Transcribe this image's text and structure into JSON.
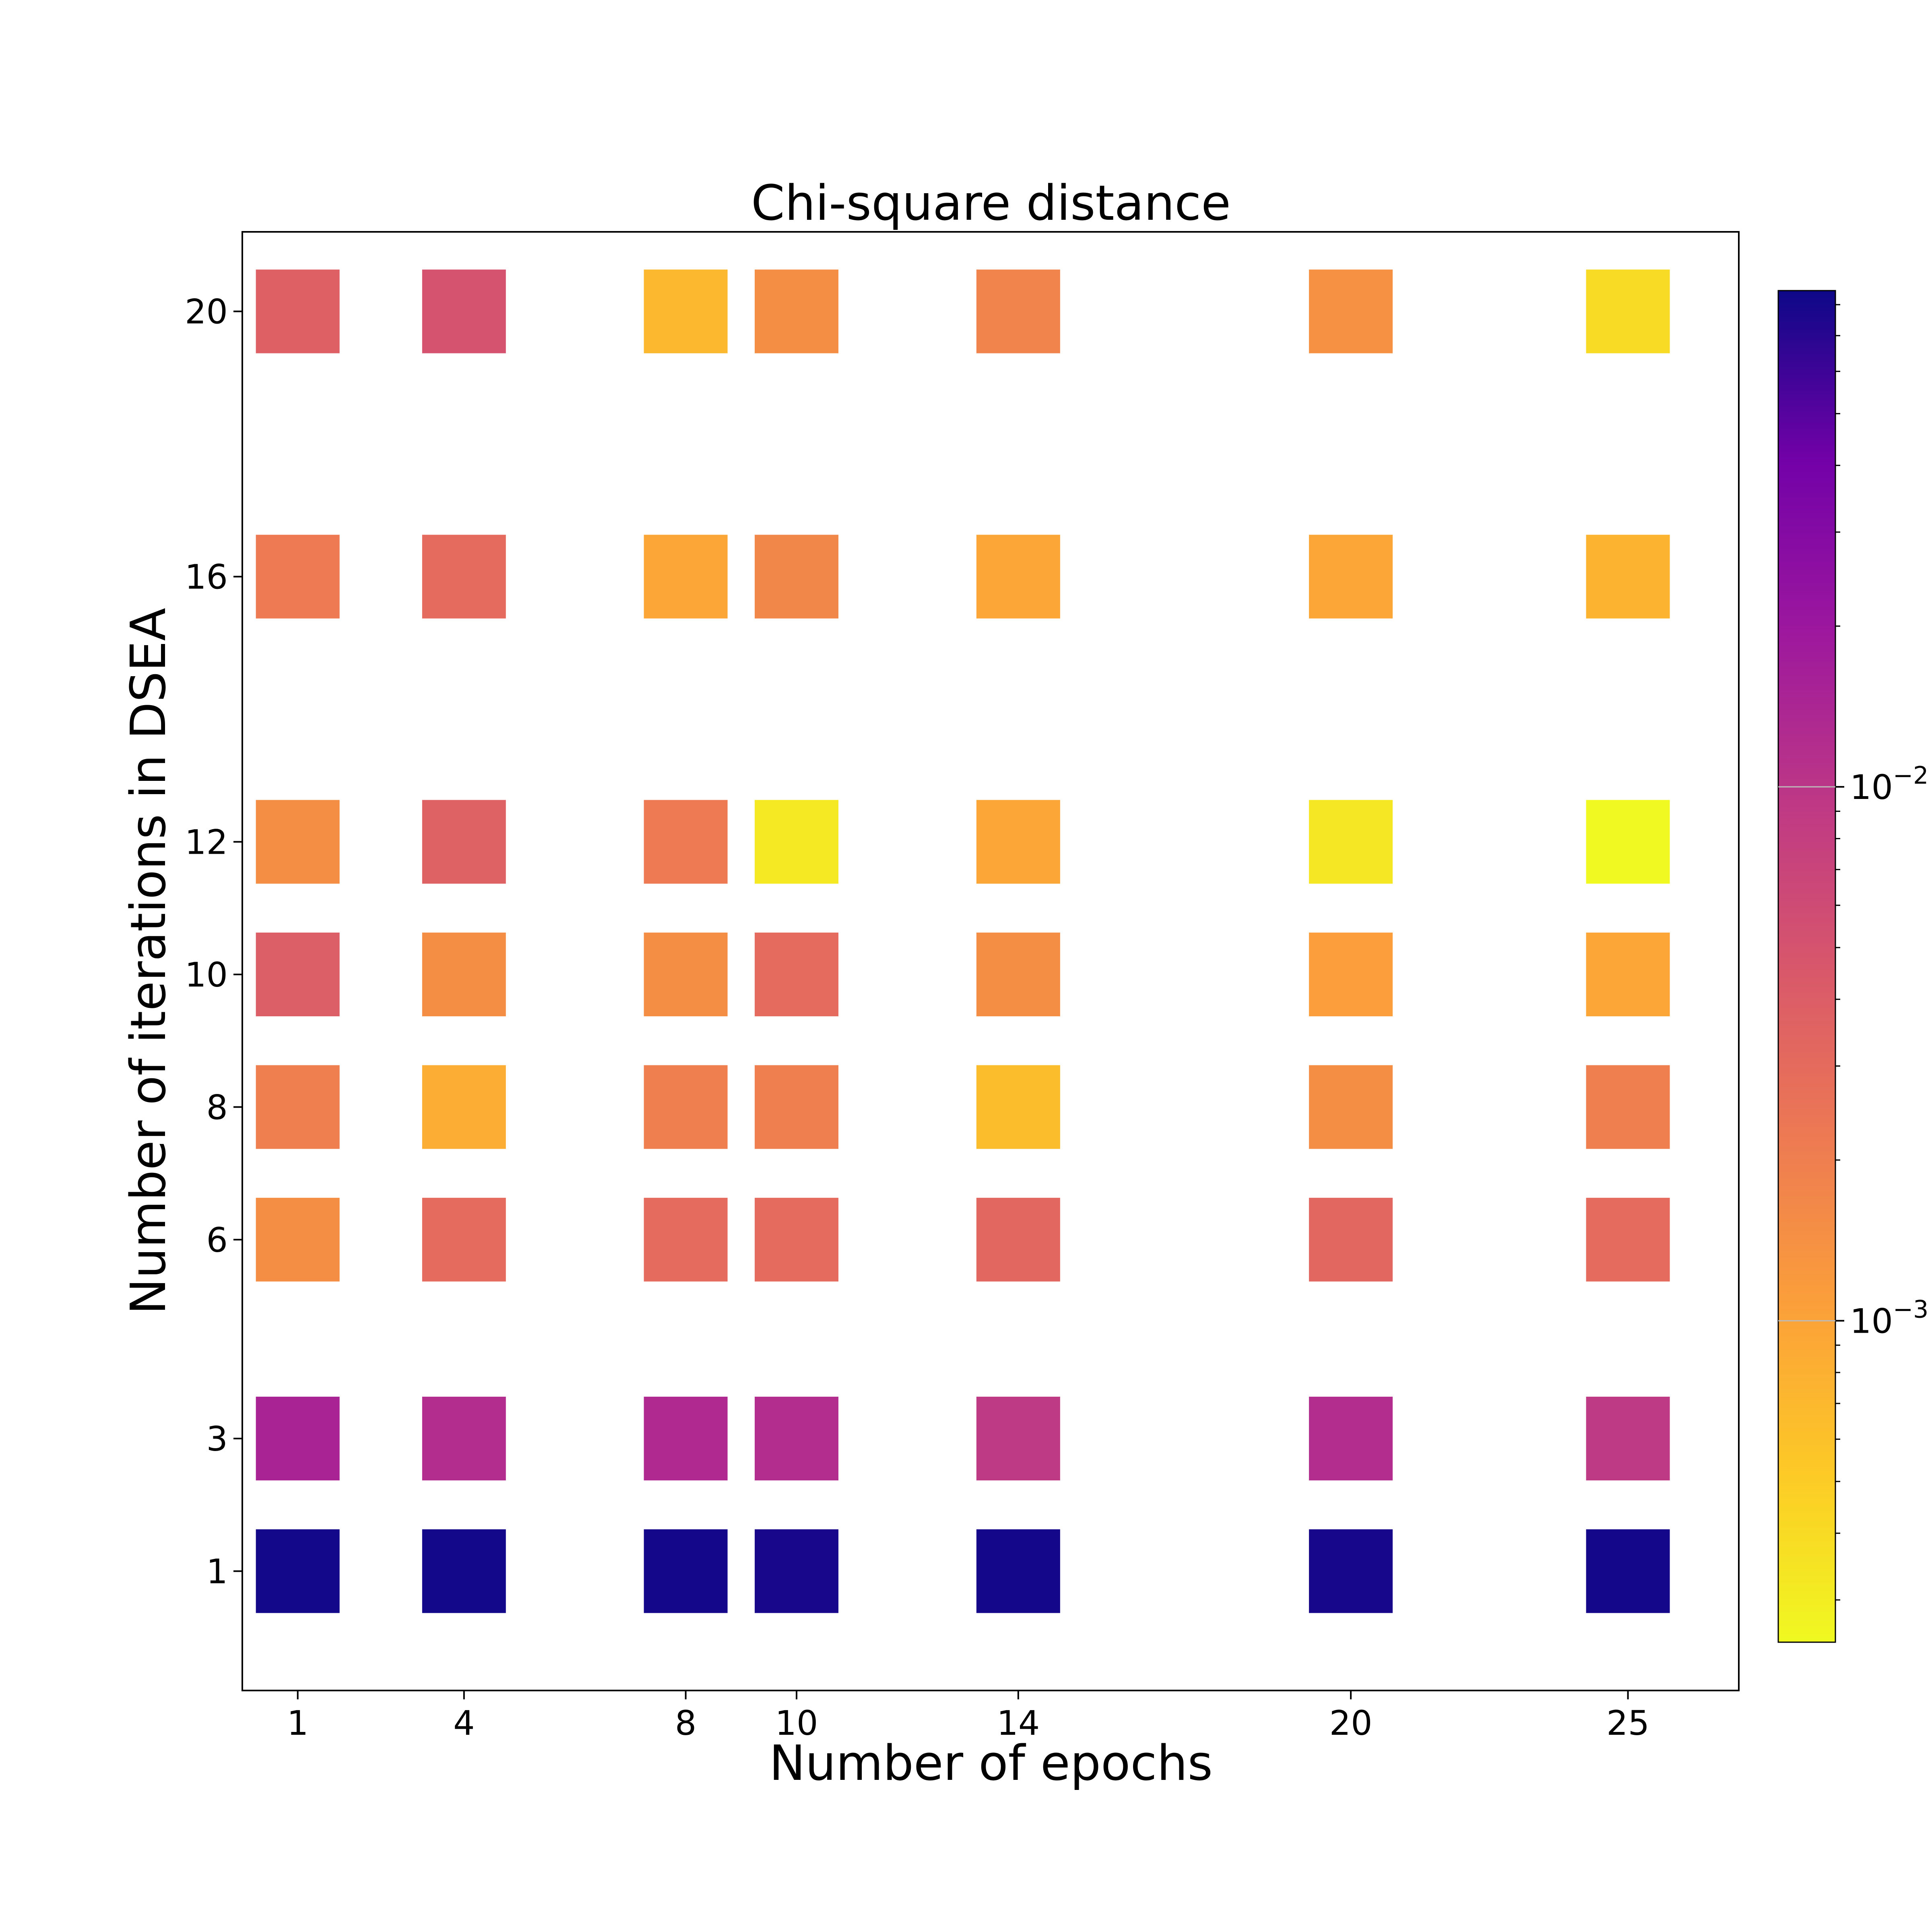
{
  "chart_data": {
    "type": "heatmap",
    "title": "Chi-square distance",
    "xlabel": "Number of epochs",
    "ylabel": "Number of iterations in DSEA",
    "x": [
      1,
      4,
      8,
      10,
      14,
      20,
      25
    ],
    "y": [
      1,
      3,
      6,
      8,
      10,
      12,
      16,
      20
    ],
    "xticks": [
      "1",
      "4",
      "8",
      "10",
      "14",
      "20",
      "25"
    ],
    "yticks": [
      "1",
      "3",
      "6",
      "8",
      "10",
      "12",
      "16",
      "20"
    ],
    "colorscale": "plasma_r",
    "color_scale_type": "log",
    "color_range": [
      0.00025,
      0.085
    ],
    "colorbar_ticks": [
      {
        "value": 0.001,
        "label_base": "10",
        "label_exp": "−3"
      },
      {
        "value": 0.01,
        "label_base": "10",
        "label_exp": "−2"
      }
    ],
    "values": [
      [
        0.082,
        0.082,
        0.08,
        0.078,
        0.08,
        0.079,
        0.08
      ],
      [
        0.015,
        0.012,
        0.013,
        0.012,
        0.009,
        0.012,
        0.009
      ],
      [
        0.0015,
        0.003,
        0.003,
        0.003,
        0.0033,
        0.0033,
        0.003
      ],
      [
        0.002,
        0.00085,
        0.002,
        0.002,
        0.00065,
        0.0015,
        0.002
      ],
      [
        0.004,
        0.0015,
        0.0015,
        0.003,
        0.0015,
        0.0011,
        0.00095
      ],
      [
        0.0015,
        0.0037,
        0.0022,
        0.00032,
        0.00095,
        0.00033,
        0.00025
      ],
      [
        0.0022,
        0.003,
        0.00095,
        0.0017,
        0.00095,
        0.00095,
        0.00075
      ],
      [
        0.0038,
        0.005,
        0.0007,
        0.0015,
        0.0018,
        0.0014,
        0.0004
      ]
    ],
    "grid": false
  }
}
